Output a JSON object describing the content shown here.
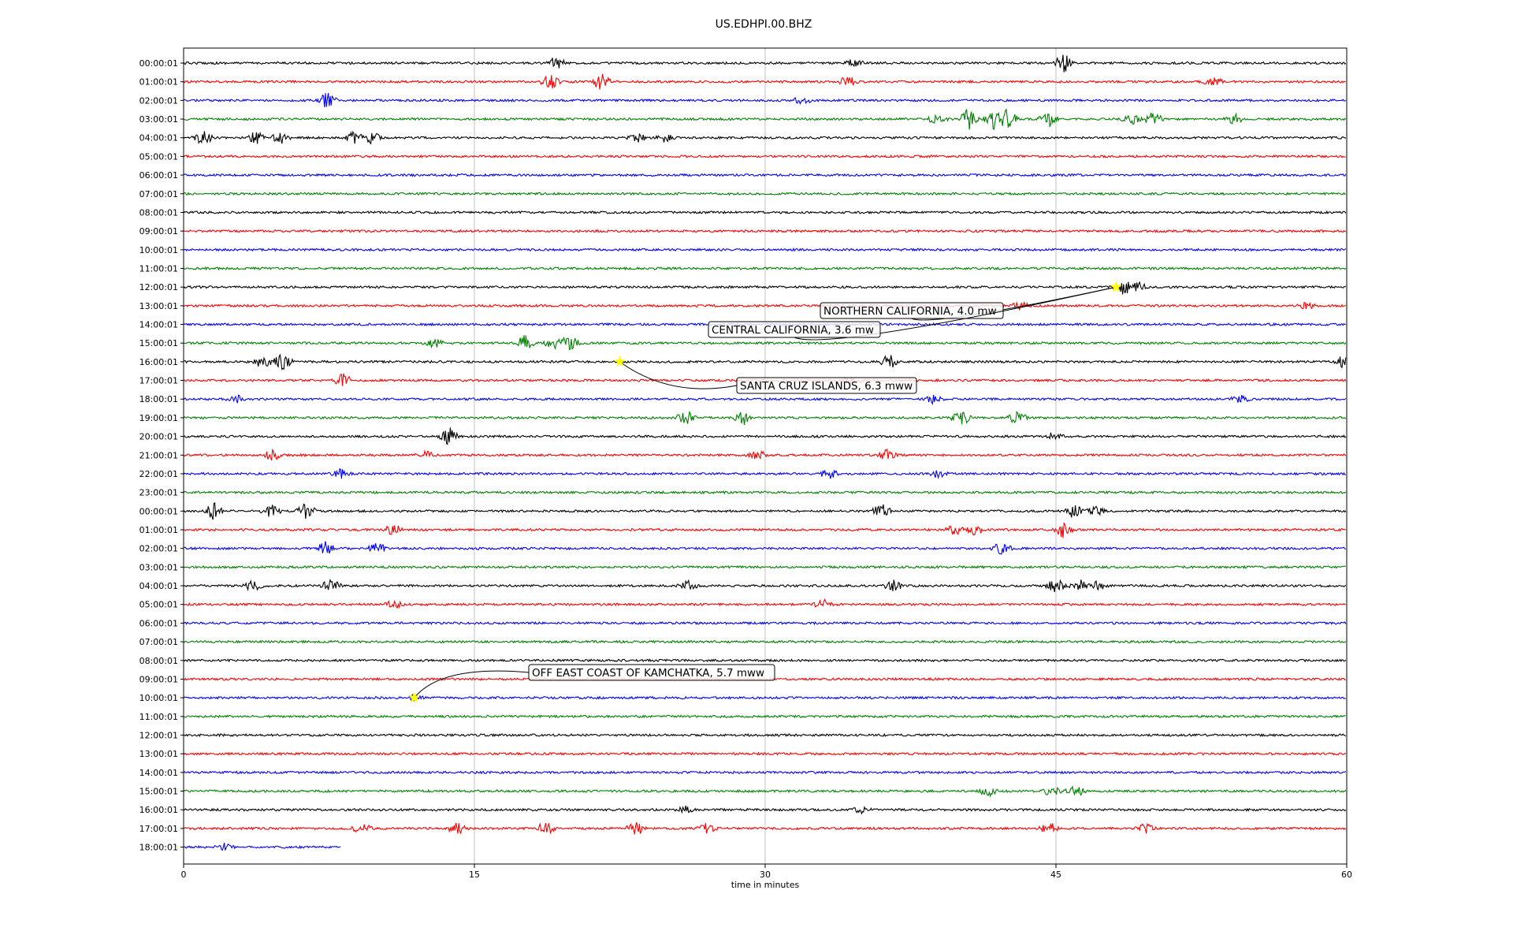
{
  "chart_data": {
    "type": "line",
    "title": "US.EDHPI.00.BHZ",
    "xlabel": "time in minutes",
    "ylabel": "",
    "xlim": [
      0,
      60
    ],
    "x_ticks": [
      "0",
      "15",
      "30",
      "45",
      "60"
    ],
    "grid": "vertical",
    "colors": [
      "#000000",
      "#ff0000",
      "#0000ff",
      "#008000"
    ],
    "row_labels": [
      "00:00:01",
      "01:00:01",
      "02:00:01",
      "03:00:01",
      "04:00:01",
      "05:00:01",
      "06:00:01",
      "07:00:01",
      "08:00:01",
      "09:00:01",
      "10:00:01",
      "11:00:01",
      "12:00:01",
      "13:00:01",
      "14:00:01",
      "15:00:01",
      "16:00:01",
      "17:00:01",
      "18:00:01",
      "19:00:01",
      "20:00:01",
      "21:00:01",
      "22:00:01",
      "23:00:01",
      "00:00:01",
      "01:00:01",
      "02:00:01",
      "03:00:01",
      "04:00:01",
      "05:00:01",
      "06:00:01",
      "07:00:01",
      "08:00:01",
      "09:00:01",
      "10:00:01",
      "11:00:01",
      "12:00:01",
      "13:00:01",
      "14:00:01",
      "15:00:01",
      "16:00:01",
      "17:00:01",
      "18:00:01"
    ],
    "last_row_end_minute": 8.1,
    "events": [
      {
        "label": "NORTHERN CALIFORNIA, 4.0 mw",
        "row": 12,
        "minute": 48.1
      },
      {
        "label": "CENTRAL CALIFORNIA, 3.6 mw",
        "row": 12,
        "minute": 48.1
      },
      {
        "label": "SANTA CRUZ ISLANDS, 6.3 mww",
        "row": 16,
        "minute": 22.5
      },
      {
        "label": "OFF EAST COAST OF KAMCHATKA, 5.7 mww",
        "row": 34,
        "minute": 11.9
      }
    ],
    "bursts": [
      {
        "row": 0,
        "minute": 19.2,
        "amp": 8
      },
      {
        "row": 0,
        "minute": 34.6,
        "amp": 5
      },
      {
        "row": 0,
        "minute": 45.4,
        "amp": 12
      },
      {
        "row": 1,
        "minute": 18.9,
        "amp": 10
      },
      {
        "row": 1,
        "minute": 21.6,
        "amp": 14
      },
      {
        "row": 1,
        "minute": 34.3,
        "amp": 8
      },
      {
        "row": 1,
        "minute": 53.1,
        "amp": 6
      },
      {
        "row": 2,
        "minute": 7.4,
        "amp": 10
      },
      {
        "row": 2,
        "minute": 31.9,
        "amp": 5
      },
      {
        "row": 3,
        "minute": 38.9,
        "amp": 7
      },
      {
        "row": 3,
        "minute": 40.5,
        "amp": 14
      },
      {
        "row": 3,
        "minute": 41.8,
        "amp": 12
      },
      {
        "row": 3,
        "minute": 42.5,
        "amp": 14
      },
      {
        "row": 3,
        "minute": 44.6,
        "amp": 10
      },
      {
        "row": 3,
        "minute": 48.9,
        "amp": 7
      },
      {
        "row": 3,
        "minute": 50.0,
        "amp": 9
      },
      {
        "row": 3,
        "minute": 54.2,
        "amp": 6
      },
      {
        "row": 4,
        "minute": 1.0,
        "amp": 9
      },
      {
        "row": 4,
        "minute": 3.8,
        "amp": 9
      },
      {
        "row": 4,
        "minute": 5.0,
        "amp": 7
      },
      {
        "row": 4,
        "minute": 8.8,
        "amp": 8
      },
      {
        "row": 4,
        "minute": 9.7,
        "amp": 7
      },
      {
        "row": 4,
        "minute": 23.4,
        "amp": 5
      },
      {
        "row": 4,
        "minute": 24.8,
        "amp": 5
      },
      {
        "row": 12,
        "minute": 48.5,
        "amp": 10
      },
      {
        "row": 12,
        "minute": 49.2,
        "amp": 7
      },
      {
        "row": 13,
        "minute": 43.2,
        "amp": 5
      },
      {
        "row": 13,
        "minute": 57.9,
        "amp": 4
      },
      {
        "row": 15,
        "minute": 12.9,
        "amp": 6
      },
      {
        "row": 15,
        "minute": 17.6,
        "amp": 10
      },
      {
        "row": 15,
        "minute": 19.1,
        "amp": 8
      },
      {
        "row": 15,
        "minute": 19.9,
        "amp": 11
      },
      {
        "row": 16,
        "minute": 4.1,
        "amp": 8
      },
      {
        "row": 16,
        "minute": 5.1,
        "amp": 12
      },
      {
        "row": 16,
        "minute": 36.4,
        "amp": 9
      },
      {
        "row": 16,
        "minute": 59.8,
        "amp": 7
      },
      {
        "row": 17,
        "minute": 8.2,
        "amp": 8
      },
      {
        "row": 17,
        "minute": 34.5,
        "amp": 6
      },
      {
        "row": 18,
        "minute": 2.7,
        "amp": 5
      },
      {
        "row": 18,
        "minute": 38.7,
        "amp": 6
      },
      {
        "row": 18,
        "minute": 54.5,
        "amp": 5
      },
      {
        "row": 19,
        "minute": 25.9,
        "amp": 9
      },
      {
        "row": 19,
        "minute": 28.9,
        "amp": 8
      },
      {
        "row": 19,
        "minute": 40.1,
        "amp": 10
      },
      {
        "row": 19,
        "minute": 43.0,
        "amp": 8
      },
      {
        "row": 20,
        "minute": 13.7,
        "amp": 11
      },
      {
        "row": 20,
        "minute": 44.9,
        "amp": 5
      },
      {
        "row": 21,
        "minute": 4.6,
        "amp": 7
      },
      {
        "row": 21,
        "minute": 12.5,
        "amp": 5
      },
      {
        "row": 21,
        "minute": 29.6,
        "amp": 6
      },
      {
        "row": 21,
        "minute": 36.3,
        "amp": 7
      },
      {
        "row": 22,
        "minute": 8.1,
        "amp": 6
      },
      {
        "row": 22,
        "minute": 33.3,
        "amp": 8
      },
      {
        "row": 22,
        "minute": 38.9,
        "amp": 5
      },
      {
        "row": 24,
        "minute": 1.6,
        "amp": 12
      },
      {
        "row": 24,
        "minute": 4.5,
        "amp": 8
      },
      {
        "row": 24,
        "minute": 6.3,
        "amp": 10
      },
      {
        "row": 24,
        "minute": 36.0,
        "amp": 9
      },
      {
        "row": 24,
        "minute": 45.9,
        "amp": 8
      },
      {
        "row": 24,
        "minute": 47.1,
        "amp": 6
      },
      {
        "row": 25,
        "minute": 10.8,
        "amp": 7
      },
      {
        "row": 25,
        "minute": 39.8,
        "amp": 8
      },
      {
        "row": 25,
        "minute": 40.8,
        "amp": 7
      },
      {
        "row": 25,
        "minute": 45.4,
        "amp": 11
      },
      {
        "row": 26,
        "minute": 7.3,
        "amp": 8
      },
      {
        "row": 26,
        "minute": 10.0,
        "amp": 7
      },
      {
        "row": 26,
        "minute": 42.2,
        "amp": 8
      },
      {
        "row": 28,
        "minute": 3.6,
        "amp": 7
      },
      {
        "row": 28,
        "minute": 7.6,
        "amp": 8
      },
      {
        "row": 28,
        "minute": 26.0,
        "amp": 6
      },
      {
        "row": 28,
        "minute": 36.6,
        "amp": 7
      },
      {
        "row": 28,
        "minute": 45.0,
        "amp": 10
      },
      {
        "row": 28,
        "minute": 46.2,
        "amp": 8
      },
      {
        "row": 28,
        "minute": 47.2,
        "amp": 6
      },
      {
        "row": 29,
        "minute": 10.8,
        "amp": 5
      },
      {
        "row": 29,
        "minute": 33.0,
        "amp": 6
      },
      {
        "row": 34,
        "minute": 11.9,
        "amp": 4
      },
      {
        "row": 39,
        "minute": 41.5,
        "amp": 6
      },
      {
        "row": 39,
        "minute": 44.8,
        "amp": 6
      },
      {
        "row": 39,
        "minute": 46.0,
        "amp": 7
      },
      {
        "row": 40,
        "minute": 25.9,
        "amp": 4
      },
      {
        "row": 40,
        "minute": 35.0,
        "amp": 4
      },
      {
        "row": 41,
        "minute": 9.2,
        "amp": 7
      },
      {
        "row": 41,
        "minute": 14.1,
        "amp": 8
      },
      {
        "row": 41,
        "minute": 18.7,
        "amp": 9
      },
      {
        "row": 41,
        "minute": 23.3,
        "amp": 8
      },
      {
        "row": 41,
        "minute": 27.0,
        "amp": 7
      },
      {
        "row": 41,
        "minute": 44.6,
        "amp": 9
      },
      {
        "row": 41,
        "minute": 49.6,
        "amp": 6
      },
      {
        "row": 42,
        "minute": 2.1,
        "amp": 4
      }
    ]
  }
}
